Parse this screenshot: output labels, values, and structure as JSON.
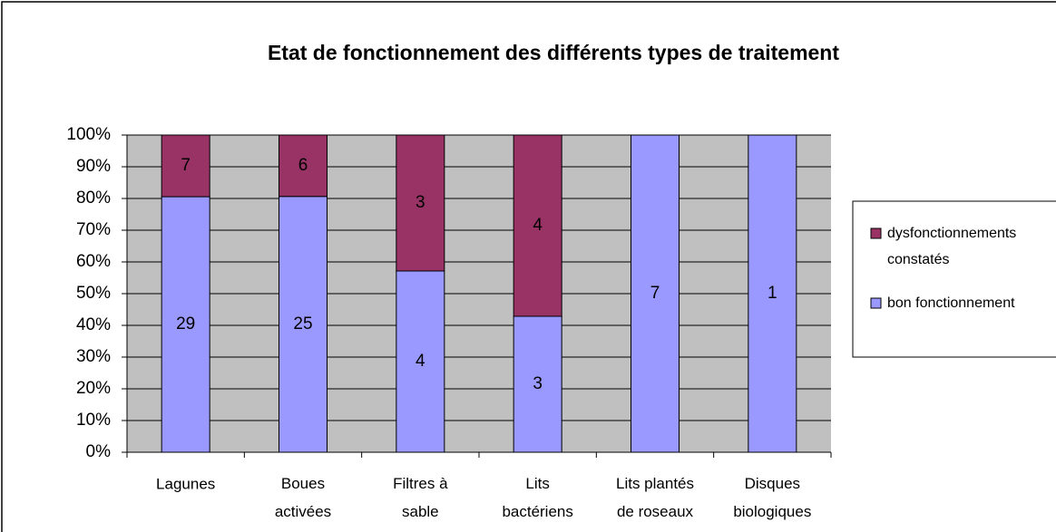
{
  "chart_data": {
    "type": "bar",
    "stacking": "percent",
    "title": "Etat de fonctionnement des différents types de traitement",
    "categories": [
      "Lagunes",
      "Boues\nactivées",
      "Filtres à\nsable",
      "Lits\nbactériens",
      "Lits plantés\nde roseaux",
      "Disques\nbiologiques"
    ],
    "series": [
      {
        "name": "bon fonctionnement",
        "color": "#9999ff",
        "values": [
          29,
          25,
          4,
          3,
          7,
          1
        ]
      },
      {
        "name": "dysfonctionnements\nconstatés",
        "color": "#993366",
        "values": [
          7,
          6,
          3,
          4,
          0,
          0
        ]
      }
    ],
    "ylim": [
      0,
      100
    ],
    "yticks": [
      {
        "value": 0,
        "label": "0%"
      },
      {
        "value": 10,
        "label": "10%"
      },
      {
        "value": 20,
        "label": "20%"
      },
      {
        "value": 30,
        "label": "30%"
      },
      {
        "value": 40,
        "label": "40%"
      },
      {
        "value": 50,
        "label": "50%"
      },
      {
        "value": 60,
        "label": "60%"
      },
      {
        "value": 70,
        "label": "70%"
      },
      {
        "value": 80,
        "label": "80%"
      },
      {
        "value": 90,
        "label": "90%"
      },
      {
        "value": 100,
        "label": "100%"
      }
    ],
    "grid": true,
    "legend": "right"
  }
}
